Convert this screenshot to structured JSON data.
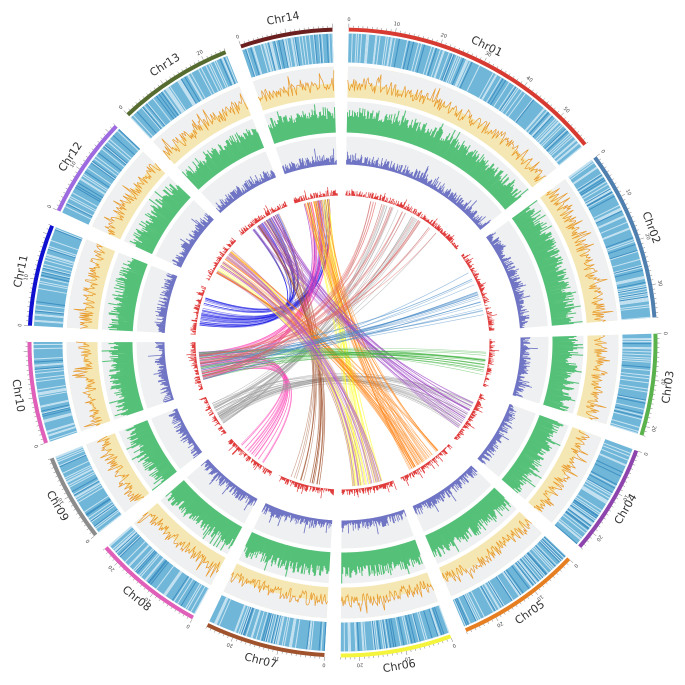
{
  "chromosomes": [
    {
      "name": "Chr01",
      "length": 58,
      "color": "#d73a31",
      "ticks": [
        0,
        10,
        20,
        30,
        40,
        50
      ]
    },
    {
      "name": "Chr02",
      "length": 37,
      "color": "#4f7fae",
      "ticks": [
        0,
        10,
        20,
        30
      ]
    },
    {
      "name": "Chr03",
      "length": 22,
      "color": "#5ab24c",
      "ticks": [
        0,
        10,
        20
      ]
    },
    {
      "name": "Chr04",
      "length": 24,
      "color": "#8e44ad",
      "ticks": [
        0,
        10,
        20
      ]
    },
    {
      "name": "Chr05",
      "length": 27,
      "color": "#e67e22",
      "ticks": [
        0,
        10,
        20
      ]
    },
    {
      "name": "Chr06",
      "length": 24,
      "color": "#f4f43c",
      "ticks": [
        20,
        10,
        0
      ]
    },
    {
      "name": "Chr07",
      "length": 26,
      "color": "#a0522d",
      "ticks": [
        20,
        10,
        0
      ]
    },
    {
      "name": "Chr08",
      "length": 24,
      "color": "#e05fb8",
      "ticks": [
        20,
        10,
        0
      ]
    },
    {
      "name": "Chr09",
      "length": 19,
      "color": "#8c8c8c",
      "ticks": [
        10,
        0
      ]
    },
    {
      "name": "Chr10",
      "length": 22,
      "color": "#e05fb8",
      "ticks": [
        0
      ]
    },
    {
      "name": "Chr11",
      "length": 22,
      "color": "#1010d0",
      "ticks": [
        0,
        10
      ]
    },
    {
      "name": "Chr12",
      "length": 22,
      "color": "#9d6ae0",
      "ticks": [
        0,
        10
      ]
    },
    {
      "name": "Chr13",
      "length": 25,
      "color": "#556b2f",
      "ticks": [
        0,
        20
      ]
    },
    {
      "name": "Chr14",
      "length": 20,
      "color": "#6b1f1f",
      "ticks": [
        0
      ]
    }
  ],
  "tracks": [
    {
      "name": "gene density heatmap",
      "color": "#6fb6d8"
    },
    {
      "name": "line track",
      "color": "#e89a2c"
    },
    {
      "name": "green histogram",
      "color": "#55c178"
    },
    {
      "name": "purple histogram",
      "color": "#6f74c4"
    },
    {
      "name": "red histogram",
      "color": "#e03c3c"
    }
  ],
  "synteny_links": [
    {
      "from": "Chr11",
      "to": "Chr14",
      "color": "#1f1fe6"
    },
    {
      "from": "Chr11",
      "to": "Chr13",
      "color": "#1f1fe6"
    },
    {
      "from": "Chr10",
      "to": "Chr14",
      "color": "#ff3fb4"
    },
    {
      "from": "Chr10",
      "to": "Chr08",
      "color": "#ff3fb4"
    },
    {
      "from": "Chr09",
      "to": "Chr01",
      "color": "#999999"
    },
    {
      "from": "Chr09",
      "to": "Chr04",
      "color": "#999999"
    },
    {
      "from": "Chr07",
      "to": "Chr13",
      "color": "#a0522d"
    },
    {
      "from": "Chr06",
      "to": "Chr14",
      "color": "#ffff33"
    },
    {
      "from": "Chr06",
      "to": "Chr12",
      "color": "#ffff33"
    },
    {
      "from": "Chr05",
      "to": "Chr14",
      "color": "#ff7f0e"
    },
    {
      "from": "Chr05",
      "to": "Chr12",
      "color": "#ff7f0e"
    },
    {
      "from": "Chr04",
      "to": "Chr13",
      "color": "#9b3fc4"
    },
    {
      "from": "Chr03",
      "to": "Chr10",
      "color": "#45b445"
    },
    {
      "from": "Chr02",
      "to": "Chr10",
      "color": "#4a8cc8"
    },
    {
      "from": "Chr01",
      "to": "Chr10",
      "color": "#e06060"
    },
    {
      "from": "Chr12",
      "to": "Chr06",
      "color": "#b057d6"
    }
  ]
}
